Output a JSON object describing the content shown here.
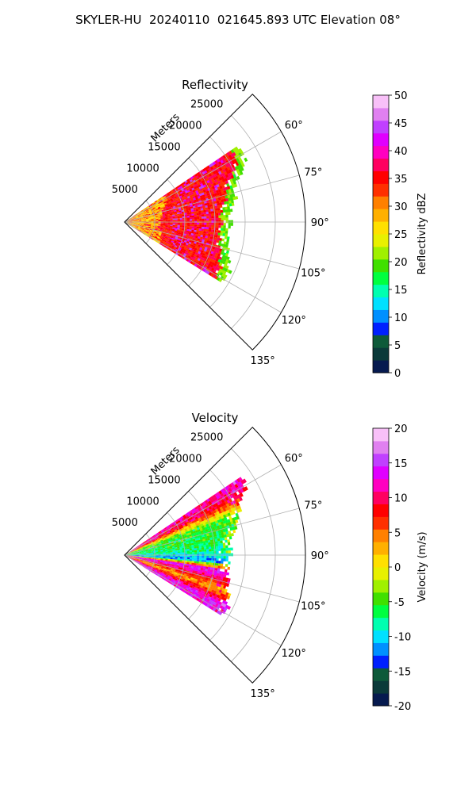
{
  "suptitle": "SKYLER-HU  20240110  021645.893 UTC Elevation 08°",
  "chart_data": [
    {
      "type": "heatmap",
      "title": "Reflectivity",
      "projection": "polar sector",
      "theta_range_deg": [
        45,
        135
      ],
      "r_range": [
        0,
        30000
      ],
      "r_label": "Meters",
      "r_ticks": [
        5000,
        10000,
        15000,
        20000,
        25000
      ],
      "theta_ticks_deg": [
        60,
        75,
        90,
        105,
        120,
        135
      ],
      "grid": true,
      "colorbar": {
        "label": "Reflectivity dBZ",
        "range": [
          0,
          50
        ],
        "ticks": [
          0,
          5,
          10,
          15,
          20,
          25,
          30,
          35,
          40,
          45,
          50
        ],
        "colors": [
          "#061a4f",
          "#0b3a3a",
          "#0e5a3a",
          "#0020ff",
          "#0090ff",
          "#00e0ff",
          "#00ffb0",
          "#00ff40",
          "#40e000",
          "#a0f000",
          "#e8f000",
          "#ffe000",
          "#ffb000",
          "#ff8000",
          "#ff3000",
          "#ff0000",
          "#ff0060",
          "#ff00c0",
          "#e000ff",
          "#c040ff",
          "#e080f0",
          "#f8c0f8"
        ]
      },
      "echo": {
        "range_m_by_azimuth": [
          [
            58,
            23000
          ],
          [
            62,
            22500
          ],
          [
            66,
            21000
          ],
          [
            70,
            19800
          ],
          [
            75,
            18800
          ],
          [
            80,
            18200
          ],
          [
            85,
            17200
          ],
          [
            90,
            17500
          ],
          [
            95,
            17000
          ],
          [
            100,
            17300
          ],
          [
            105,
            17600
          ],
          [
            110,
            18000
          ],
          [
            115,
            19200
          ],
          [
            120,
            19000
          ]
        ],
        "dominant_dbz": 35,
        "near_range_dbz": 27,
        "edge_dbz": 18,
        "notes": "strong echo band 30-40 dBZ with embedded 40-45 dBZ cells"
      }
    },
    {
      "type": "heatmap",
      "title": "Velocity",
      "projection": "polar sector",
      "theta_range_deg": [
        45,
        135
      ],
      "r_range": [
        0,
        30000
      ],
      "r_label": "Meters",
      "r_ticks": [
        5000,
        10000,
        15000,
        20000,
        25000
      ],
      "theta_ticks_deg": [
        60,
        75,
        90,
        105,
        120,
        135
      ],
      "grid": true,
      "colorbar": {
        "label": "Velocity (m/s)",
        "range": [
          -20,
          20
        ],
        "ticks": [
          -20,
          -15,
          -10,
          -5,
          0,
          5,
          10,
          15,
          20
        ],
        "colors": [
          "#061a4f",
          "#0b3a3a",
          "#0e5a3a",
          "#0020ff",
          "#0090ff",
          "#00e0ff",
          "#00ffb0",
          "#00ff40",
          "#40e000",
          "#a0f000",
          "#e8f000",
          "#ffe000",
          "#ffb000",
          "#ff8000",
          "#ff3000",
          "#ff0000",
          "#ff0060",
          "#ff00c0",
          "#e000ff",
          "#c040ff",
          "#e080f0",
          "#f8c0f8"
        ]
      },
      "echo": {
        "range_m_by_azimuth": [
          [
            58,
            23000
          ],
          [
            62,
            22500
          ],
          [
            66,
            21000
          ],
          [
            70,
            19800
          ],
          [
            75,
            18800
          ],
          [
            80,
            18200
          ],
          [
            85,
            17200
          ],
          [
            90,
            17500
          ],
          [
            95,
            17000
          ],
          [
            100,
            17300
          ],
          [
            105,
            17600
          ],
          [
            110,
            18000
          ],
          [
            115,
            19200
          ],
          [
            120,
            19000
          ]
        ],
        "velocity_by_azimuth_ms": [
          [
            58,
            11
          ],
          [
            63,
            9
          ],
          [
            70,
            -5
          ],
          [
            80,
            -6
          ],
          [
            88,
            -8
          ],
          [
            94,
            -12
          ],
          [
            99,
            14
          ],
          [
            104,
            10
          ],
          [
            110,
            3
          ],
          [
            117,
            13
          ]
        ]
      }
    }
  ]
}
